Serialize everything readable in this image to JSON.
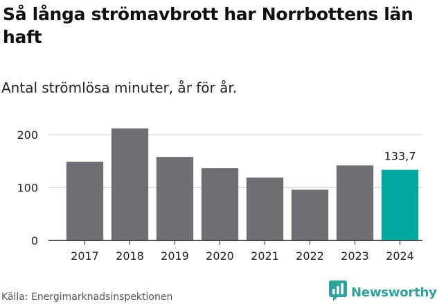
{
  "title": "Så långa strömavbrott har Norrbottens län haft",
  "subtitle": "Antal strömlösa minuter, år för år.",
  "source": "Källa: Energimarknadsinspektionen",
  "brand": {
    "name": "Newsworthy",
    "icon": "newsworthy-logo-icon",
    "color": "#2fa39a"
  },
  "colors": {
    "bar": "#6f6e73",
    "highlight": "#00a99d",
    "grid": "#dddddd",
    "axis": "#222222"
  },
  "chart_data": {
    "type": "bar",
    "title": "Så långa strömavbrott har Norrbottens län haft",
    "subtitle": "Antal strömlösa minuter, år för år.",
    "xlabel": "",
    "ylabel": "",
    "categories": [
      "2017",
      "2018",
      "2019",
      "2020",
      "2021",
      "2022",
      "2023",
      "2024"
    ],
    "values": [
      149,
      212,
      158,
      137,
      119,
      96,
      142,
      133.7
    ],
    "highlight_index": 7,
    "data_labels": [
      {
        "index": 7,
        "text": "133,7"
      }
    ],
    "yticks": [
      0,
      100,
      200
    ],
    "ytick_labels": [
      "0",
      "100",
      "200"
    ],
    "ylim": [
      0,
      225
    ],
    "grid": true
  }
}
